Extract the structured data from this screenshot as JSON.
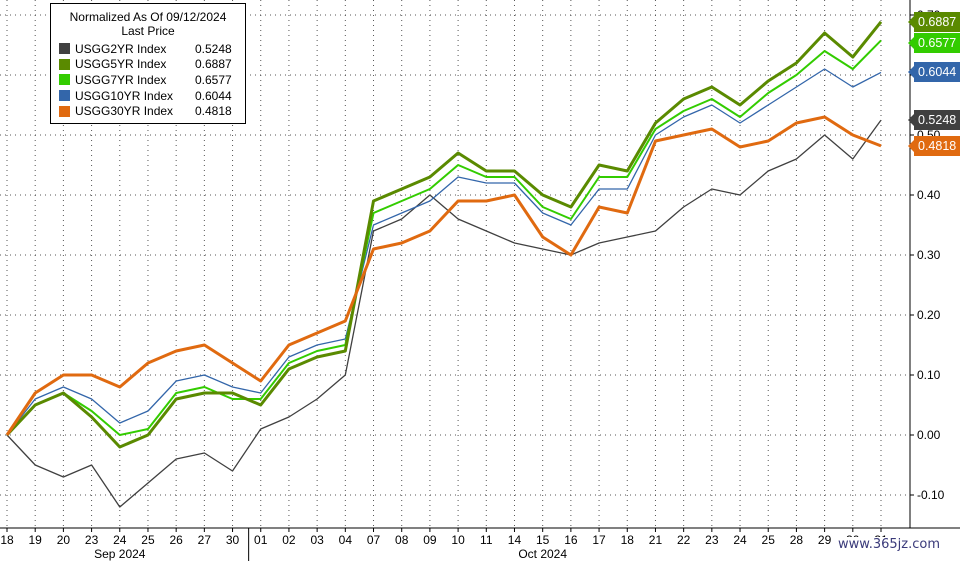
{
  "legend": {
    "title": "Normalized As Of 09/12/2024",
    "subtitle": "Last Price"
  },
  "watermark": "www.365jz.com",
  "chart_data": {
    "type": "line",
    "x": [
      "18",
      "19",
      "20",
      "23",
      "24",
      "25",
      "26",
      "27",
      "30",
      "01",
      "02",
      "03",
      "04",
      "07",
      "08",
      "09",
      "10",
      "11",
      "14",
      "15",
      "16",
      "17",
      "18",
      "21",
      "22",
      "23",
      "24",
      "25",
      "28",
      "29",
      "30",
      "31"
    ],
    "month_labels": [
      {
        "label": "Sep 2024",
        "at": "24"
      },
      {
        "label": "Oct 2024",
        "at": "15"
      }
    ],
    "ylim": [
      -0.155,
      0.725
    ],
    "y_ticks": [
      "-0.10",
      "0.00",
      "0.10",
      "0.20",
      "0.30",
      "0.40",
      "0.50",
      "0.60",
      "0.70"
    ],
    "y_tick_values": [
      -0.1,
      0.0,
      0.1,
      0.2,
      0.3,
      0.4,
      0.5,
      0.6,
      0.7
    ],
    "grid": true,
    "legend_position": "top-left",
    "series": [
      {
        "name": "USGG2YR Index",
        "last": "0.5248",
        "color": "#404040",
        "values": [
          0.0,
          -0.05,
          -0.07,
          -0.05,
          -0.12,
          -0.08,
          -0.04,
          -0.03,
          -0.06,
          0.01,
          0.03,
          0.06,
          0.1,
          0.34,
          0.36,
          0.4,
          0.36,
          0.34,
          0.32,
          0.31,
          0.3,
          0.32,
          0.33,
          0.34,
          0.38,
          0.41,
          0.4,
          0.44,
          0.46,
          0.5,
          0.46,
          0.5248
        ]
      },
      {
        "name": "USGG5YR Index",
        "last": "0.6887",
        "color": "#5a8a00",
        "values": [
          0.0,
          0.05,
          0.07,
          0.03,
          -0.02,
          0.0,
          0.06,
          0.07,
          0.07,
          0.05,
          0.11,
          0.13,
          0.14,
          0.39,
          0.41,
          0.43,
          0.47,
          0.44,
          0.44,
          0.4,
          0.38,
          0.45,
          0.44,
          0.52,
          0.56,
          0.58,
          0.55,
          0.59,
          0.62,
          0.67,
          0.63,
          0.6887
        ]
      },
      {
        "name": "USGG7YR Index",
        "last": "0.6577",
        "color": "#33cc00",
        "values": [
          0.0,
          0.05,
          0.07,
          0.04,
          0.0,
          0.01,
          0.07,
          0.08,
          0.06,
          0.06,
          0.12,
          0.14,
          0.15,
          0.37,
          0.39,
          0.41,
          0.45,
          0.43,
          0.43,
          0.38,
          0.36,
          0.43,
          0.43,
          0.51,
          0.54,
          0.56,
          0.53,
          0.57,
          0.6,
          0.64,
          0.61,
          0.6577
        ]
      },
      {
        "name": "USGG10YR Index",
        "last": "0.6044",
        "color": "#3366aa",
        "values": [
          0.0,
          0.06,
          0.08,
          0.06,
          0.02,
          0.04,
          0.09,
          0.1,
          0.08,
          0.07,
          0.13,
          0.15,
          0.16,
          0.35,
          0.37,
          0.39,
          0.43,
          0.42,
          0.42,
          0.37,
          0.35,
          0.41,
          0.41,
          0.5,
          0.53,
          0.55,
          0.52,
          0.55,
          0.58,
          0.61,
          0.58,
          0.6044
        ]
      },
      {
        "name": "USGG30YR Index",
        "last": "0.4818",
        "color": "#e06a10",
        "values": [
          0.0,
          0.07,
          0.1,
          0.1,
          0.08,
          0.12,
          0.14,
          0.15,
          0.12,
          0.09,
          0.15,
          0.17,
          0.19,
          0.31,
          0.32,
          0.34,
          0.39,
          0.39,
          0.4,
          0.33,
          0.3,
          0.38,
          0.37,
          0.49,
          0.5,
          0.51,
          0.48,
          0.49,
          0.52,
          0.53,
          0.5,
          0.4818
        ]
      }
    ]
  }
}
